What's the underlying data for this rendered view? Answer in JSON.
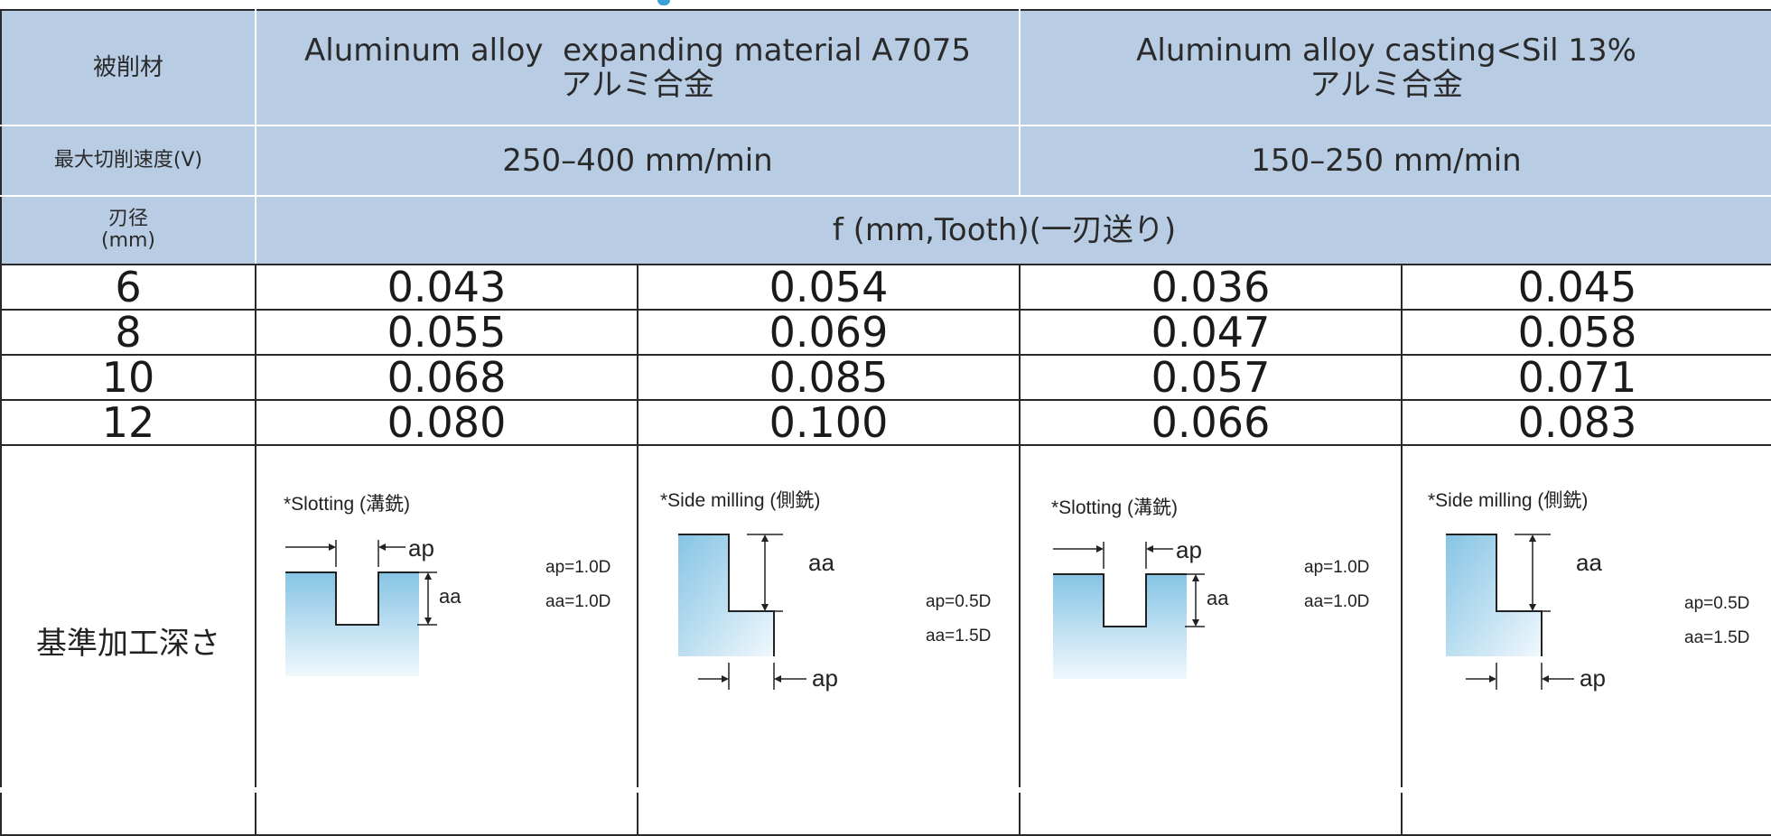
{
  "header": {
    "material_label": "被削材",
    "material_1_en": "Aluminum alloy  expanding material A7075",
    "material_1_jp": "アルミ合金",
    "material_2_en": "Aluminum alloy casting<Sil 13%",
    "material_2_jp": "アルミ合金",
    "speed_label": "最大切削速度(V)",
    "speed_1": "250–400 mm/min",
    "speed_2": "150–250 mm/min",
    "diameter_label": "刃径",
    "diameter_unit": "(mm)",
    "feed_label": "f (mm,Tooth)(一刃送り)"
  },
  "rows": [
    {
      "d": "6",
      "v1": "0.043",
      "v2": "0.054",
      "v3": "0.036",
      "v4": "0.045"
    },
    {
      "d": "8",
      "v1": "0.055",
      "v2": "0.069",
      "v3": "0.047",
      "v4": "0.058"
    },
    {
      "d": "10",
      "v1": "0.068",
      "v2": "0.085",
      "v3": "0.057",
      "v4": "0.071"
    },
    {
      "d": "12",
      "v1": "0.080",
      "v2": "0.100",
      "v3": "0.066",
      "v4": "0.083"
    }
  ],
  "depth": {
    "label": "基準加工深さ",
    "slotting_title": "*Slotting (溝銑)",
    "side_title": "*Side milling (側銑)",
    "ap_symbol": "ap",
    "aa_symbol": "aa",
    "slot_1_ap": "ap=1.0D",
    "slot_1_aa": "aa=1.0D",
    "side_1_ap": "ap=0.5D",
    "side_1_aa": "aa=1.5D",
    "slot_2_ap": "ap=1.0D",
    "slot_2_aa": "aa=1.0D",
    "side_2_ap": "ap=0.5D",
    "side_2_aa": "aa=1.5D"
  },
  "colors": {
    "header_bg": "#b8cce4",
    "border": "#2a2a2a",
    "workpiece_top": "#8ec8e6",
    "workpiece_bottom": "#eef7fc"
  }
}
